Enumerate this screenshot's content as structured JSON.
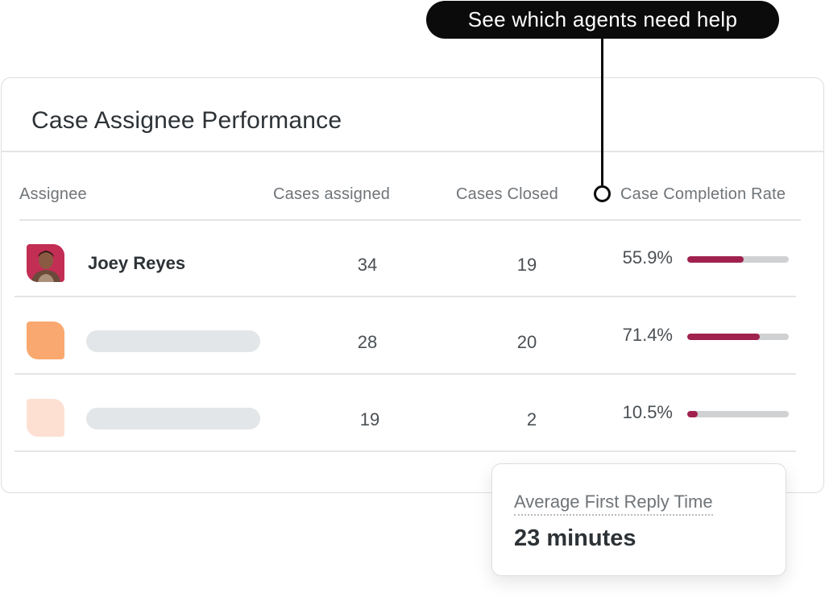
{
  "callout": {
    "text": "See which agents need help"
  },
  "card": {
    "title": "Case Assignee Performance"
  },
  "columns": {
    "assignee": "Assignee",
    "cases_assigned": "Cases assigned",
    "cases_closed": "Cases Closed",
    "completion_rate": "Case Completion Rate"
  },
  "rows": [
    {
      "name": "Joey Reyes",
      "cases_assigned": "34",
      "cases_closed": "19",
      "rate": "55.9%",
      "rate_fraction": 0.559,
      "avatar_color": "#c9325a"
    },
    {
      "name": "",
      "cases_assigned": "28",
      "cases_closed": "20",
      "rate": "71.4%",
      "rate_fraction": 0.714,
      "avatar_color": "#f9a86f"
    },
    {
      "name": "",
      "cases_assigned": "19",
      "cases_closed": "2",
      "rate": "10.5%",
      "rate_fraction": 0.105,
      "avatar_color": "#fde0d2"
    }
  ],
  "popup": {
    "label": "Average First Reply Time",
    "value": "23 minutes"
  },
  "colors": {
    "bar_fill": "#a0214e",
    "bar_track": "#cfd1d3"
  },
  "icons": {
    "row1_avatar": "person-photo-avatar"
  }
}
